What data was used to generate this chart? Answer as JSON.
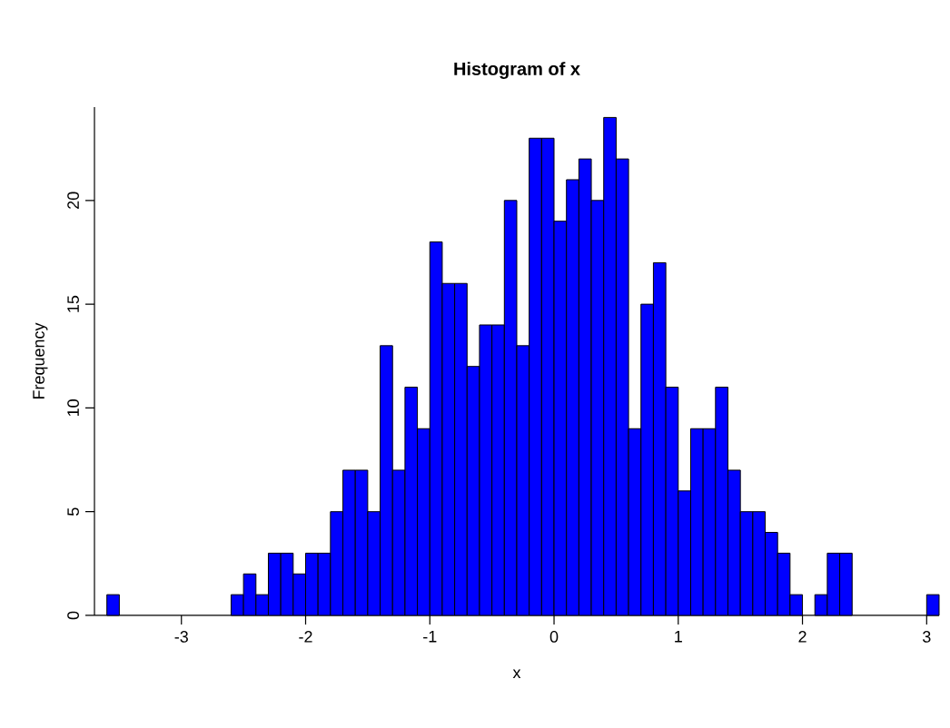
{
  "chart_data": {
    "type": "histogram",
    "title": "Histogram of x",
    "xlabel": "x",
    "ylabel": "Frequency",
    "bins": [
      -3.6,
      -3.5,
      -3.4,
      -3.3,
      -3.2,
      -3.1,
      -3.0,
      -2.9,
      -2.8,
      -2.7,
      -2.6,
      -2.5,
      -2.4,
      -2.3,
      -2.2,
      -2.1,
      -2.0,
      -1.9,
      -1.8,
      -1.7,
      -1.6,
      -1.5,
      -1.4,
      -1.3,
      -1.2,
      -1.1,
      -1.0,
      -0.9,
      -0.8,
      -0.7,
      -0.6,
      -0.5,
      -0.4,
      -0.3,
      -0.2,
      -0.1,
      0.0,
      0.1,
      0.2,
      0.3,
      0.4,
      0.5,
      0.6,
      0.7,
      0.8,
      0.9,
      1.0,
      1.1,
      1.2,
      1.3,
      1.4,
      1.5,
      1.6,
      1.7,
      1.8,
      1.9,
      2.0,
      2.1,
      2.2,
      2.3,
      2.4,
      2.5,
      2.6,
      2.7,
      2.8,
      2.9,
      3.0,
      3.1
    ],
    "values": [
      1,
      0,
      0,
      0,
      0,
      0,
      0,
      0,
      0,
      0,
      1,
      2,
      1,
      3,
      3,
      2,
      3,
      3,
      5,
      7,
      7,
      5,
      13,
      7,
      11,
      9,
      18,
      16,
      16,
      12,
      14,
      14,
      20,
      13,
      23,
      23,
      19,
      21,
      22,
      20,
      24,
      22,
      9,
      15,
      17,
      11,
      6,
      9,
      9,
      11,
      7,
      5,
      5,
      4,
      3,
      1,
      0,
      1,
      3,
      3,
      0,
      0,
      0,
      0,
      0,
      0,
      1
    ],
    "color": "#0000ff",
    "xlim": [
      -3.7,
      3.1
    ],
    "ylim": [
      0,
      24.5
    ],
    "xticks": [
      -3,
      -2,
      -1,
      0,
      1,
      2,
      3
    ],
    "yticks": [
      0,
      5,
      10,
      15,
      20
    ],
    "grid": false
  }
}
